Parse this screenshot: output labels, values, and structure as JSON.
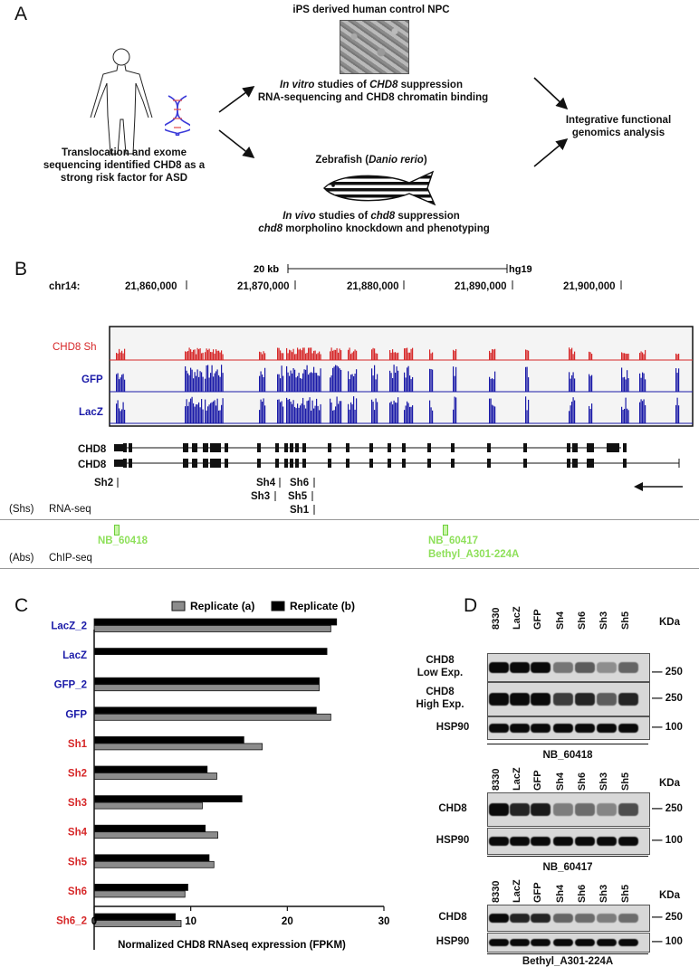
{
  "panel_a": {
    "letter": "A",
    "left_text": "Translocation and exome sequencing identified CHD8 as a strong risk factor for ASD",
    "npc_title": "iPS derived human control NPC",
    "npc_line1_italic": "In vitro",
    "npc_line1_rest": " studies of ",
    "npc_line1_gene": "CHD8",
    "npc_line1_end": " suppression",
    "npc_line2": "RNA-sequencing and CHD8 chromatin binding",
    "zf_title_pre": "Zebrafish (",
    "zf_title_italic": "Danio rerio",
    "zf_title_post": ")",
    "zf_line1_italic": "In vivo",
    "zf_line1_rest": " studies of ",
    "zf_line1_gene": "chd8",
    "zf_line1_end": " suppression",
    "zf_line2_gene": "chd8",
    "zf_line2_rest": " morpholino knockdown and phenotyping",
    "right_text": "Integrative functional genomics analysis"
  },
  "panel_b": {
    "letter": "B",
    "scale_label": "20 kb",
    "genome": "hg19",
    "chrom": "chr14:",
    "coords": [
      "21,860,000",
      "21,870,000",
      "21,880,000",
      "21,890,000",
      "21,900,000"
    ],
    "tracks": [
      {
        "name": "CHD8 Sh",
        "color": "#d62728"
      },
      {
        "name": "GFP",
        "color": "#1a1aa8"
      },
      {
        "name": "LacZ",
        "color": "#1a1aa8"
      }
    ],
    "gene_labels": [
      "CHD8",
      "CHD8"
    ],
    "shrnas": [
      "Sh2",
      "Sh4",
      "Sh3",
      "Sh6",
      "Sh5",
      "Sh1"
    ],
    "shs_label": "(Shs)",
    "rnaseq_label": "RNA-seq",
    "abs_label": "(Abs)",
    "chipseq_label": "ChIP-seq",
    "antibodies": [
      "NB_60418",
      "NB_60417",
      "Bethyl_A301-224A"
    ]
  },
  "panel_c": {
    "letter": "C",
    "chart_data": {
      "type": "bar",
      "orientation": "horizontal",
      "categories": [
        "LacZ_2",
        "LacZ",
        "GFP_2",
        "GFP",
        "Sh1",
        "Sh2",
        "Sh3",
        "Sh4",
        "Sh5",
        "Sh6",
        "Sh6_2"
      ],
      "category_colors": [
        "#1a1aa8",
        "#1a1aa8",
        "#1a1aa8",
        "#1a1aa8",
        "#d62728",
        "#d62728",
        "#d62728",
        "#d62728",
        "#d62728",
        "#d62728",
        "#d62728"
      ],
      "series": [
        {
          "name": "Replicate (b)",
          "color": "#000000",
          "values": [
            25.1,
            24.1,
            23.3,
            23.0,
            15.5,
            11.7,
            15.3,
            11.5,
            11.9,
            9.7,
            8.4
          ]
        },
        {
          "name": "Replicate (a)",
          "color": "#8c8c8c",
          "values": [
            24.5,
            null,
            23.3,
            24.5,
            17.4,
            12.7,
            11.2,
            12.8,
            12.4,
            9.4,
            9.0
          ]
        }
      ],
      "legend": [
        "Replicate (a)",
        "Replicate (b)"
      ],
      "legend_position": "top",
      "xlabel": "Normalized CHD8 RNAseq expression (FPKM)",
      "xlim": [
        0,
        30
      ],
      "xticks": [
        "0",
        "10",
        "20",
        "30"
      ]
    }
  },
  "panel_d": {
    "letter": "D",
    "lanes": [
      "8330",
      "LacZ",
      "GFP",
      "Sh4",
      "Sh6",
      "Sh3",
      "Sh5"
    ],
    "kda": "KDa",
    "blots": [
      {
        "rows": [
          "CHD8\nLow Exp.",
          "CHD8\nHigh Exp.",
          "HSP90"
        ],
        "markers": [
          "250",
          "250",
          "100"
        ],
        "antibody": "NB_60418"
      },
      {
        "rows": [
          "CHD8",
          "HSP90"
        ],
        "markers": [
          "250",
          "100"
        ],
        "antibody": "NB_60417"
      },
      {
        "rows": [
          "CHD8",
          "HSP90"
        ],
        "markers": [
          "250",
          "100"
        ],
        "antibody": "Bethyl_A301-224A"
      }
    ]
  }
}
